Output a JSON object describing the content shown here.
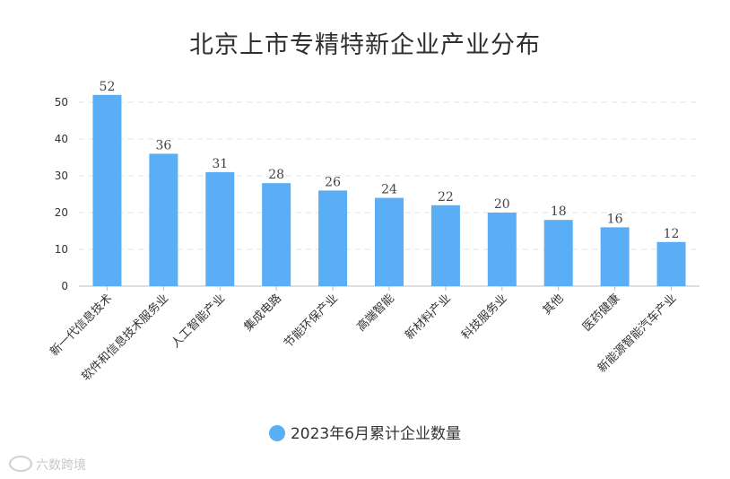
{
  "chart_data": {
    "type": "bar",
    "title": "北京上市专精特新企业产业分布",
    "categories": [
      "新一代信息技术",
      "软件和信息技术服务业",
      "人工智能产业",
      "集成电路",
      "节能环保产业",
      "高端智能",
      "新材料产业",
      "科技服务业",
      "其他",
      "医药健康",
      "新能源智能汽车产业"
    ],
    "series": [
      {
        "name": "2023年6月累计企业数量",
        "values": [
          52,
          36,
          31,
          28,
          26,
          24,
          22,
          20,
          18,
          16,
          12
        ]
      }
    ],
    "ylim": [
      0,
      55
    ],
    "yticks": [
      0,
      10,
      20,
      30,
      40,
      50
    ],
    "grid": true,
    "legend": "bottom",
    "color": "#5aaef5"
  },
  "watermark": {
    "text": "六数跨境"
  }
}
